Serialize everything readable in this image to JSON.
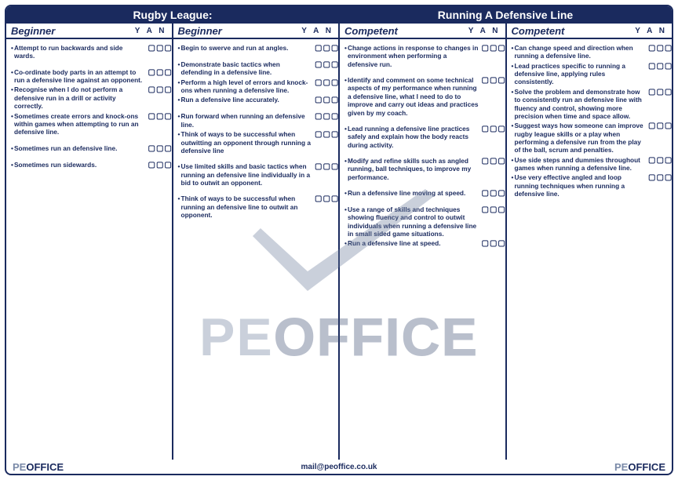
{
  "colors": {
    "primary": "#1a2a5e",
    "muted": "#7a8aa8",
    "bg": "#ffffff"
  },
  "header": {
    "left": "Rugby League:",
    "right": "Running A Defensive Line"
  },
  "yan_label": "Y A N",
  "checkbox_glyph": "▢▢▢",
  "columns": [
    {
      "title": "Beginner",
      "items": [
        {
          "text": "Attempt to run backwards and side wards.",
          "boxes": true,
          "spaced": true
        },
        {
          "text": "Co-ordinate body parts in an attempt to run a defensive line against an opponent.",
          "boxes": true
        },
        {
          "text": "Recognise when I do not perform a defensive run in a drill or activity correctly.",
          "boxes": true
        },
        {
          "text": "Sometimes create errors and knock-ons within games when attempting to run an defensive line.",
          "boxes": true,
          "spaced": true
        },
        {
          "text": "Sometimes run an defensive line.",
          "boxes": true,
          "spaced": true
        },
        {
          "text": "Sometimes run sidewards.",
          "boxes": true
        }
      ]
    },
    {
      "title": "Beginner",
      "items": [
        {
          "text": "Begin to swerve and run at angles.",
          "boxes": true,
          "spaced": true
        },
        {
          "text": "Demonstrate basic tactics when defending in a defensive line.",
          "boxes": true
        },
        {
          "text": "Perform a high level of errors and knock-ons when running a defensive line.",
          "boxes": true
        },
        {
          "text": "Run a defensive line accurately.",
          "boxes": true,
          "spaced": true
        },
        {
          "text": "Run forward when running an defensive line.",
          "boxes": true
        },
        {
          "text": "Think of ways to be successful when outwitting an opponent through running a defensive line",
          "boxes": true,
          "spaced": true
        },
        {
          "text": "Use limited skills and basic tactics when running an defensive line individually in a bid to outwit an opponent.",
          "boxes": true,
          "spaced": true
        },
        {
          "text": "Think of ways to be successful when running an defensive line to outwit an opponent.",
          "boxes": true
        }
      ]
    },
    {
      "title": "Competent",
      "items": [
        {
          "text": "Change actions in response to changes in environment when performing a defensive run.",
          "boxes": true,
          "spaced": true
        },
        {
          "text": "Identify and comment on some technical aspects of my performance when running a defensive line, what I need to do to improve and carry out ideas and practices given by my coach.",
          "boxes": true,
          "spaced": true
        },
        {
          "text": "Lead running a defensive line practices safely and explain how the body reacts during activity.",
          "boxes": true,
          "spaced": true
        },
        {
          "text": "Modify and refine skills such as angled running, ball techniques, to improve my performance.",
          "boxes": true,
          "spaced": true
        },
        {
          "text": "Run a defensive line moving at speed.",
          "boxes": true,
          "spaced": true
        },
        {
          "text": "Use a range of skills and techniques showing fluency and control to outwit individuals when running a defensive line in small sided game situations.",
          "boxes": true
        },
        {
          "text": "Run a defensive line at speed.",
          "boxes": true
        }
      ]
    },
    {
      "title": "Competent",
      "items": [
        {
          "text": "Can change speed and direction when running a defensive line.",
          "boxes": true
        },
        {
          "text": "Lead practices specific to running a defensive line, applying rules consistently.",
          "boxes": true
        },
        {
          "text": "Solve the problem and demonstrate how to consistently run an defensive line with fluency and control, showing more precision when time and space allow.",
          "boxes": true
        },
        {
          "text": "Suggest ways how someone can improve rugby league skills or a play when performing a defensive run from the play of the ball, scrum and penalties.",
          "boxes": true
        },
        {
          "text": "Use side steps and dummies throughout games when running a defensive line.",
          "boxes": true
        },
        {
          "text": "Use very effective angled and loop running techniques when running a defensive line.",
          "boxes": true
        }
      ]
    }
  ],
  "footer": {
    "brand_pe": "PE",
    "brand_office": "OFFICE",
    "mail": "mail@peoffice.co.uk"
  },
  "watermark": {
    "pe": "PE",
    "office": "OFFICE"
  }
}
